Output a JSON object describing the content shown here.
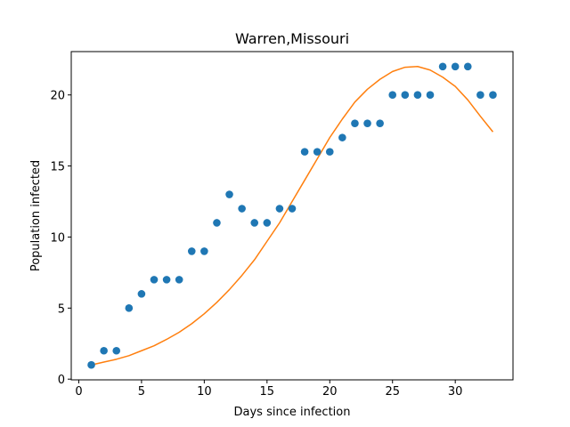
{
  "chart_data": {
    "type": "scatter",
    "title": "Warren,Missouri",
    "xlabel": "Days since infection",
    "ylabel": "Population infected",
    "xlim": [
      -0.6,
      34.6
    ],
    "ylim": [
      -0.05,
      23.05
    ],
    "xticks": [
      0,
      5,
      10,
      15,
      20,
      25,
      30
    ],
    "yticks": [
      0,
      5,
      10,
      15,
      20
    ],
    "grid": false,
    "legend": "none",
    "series": [
      {
        "kind": "scatter",
        "color": "#1f77b4",
        "x": [
          1,
          2,
          3,
          4,
          5,
          6,
          7,
          8,
          9,
          10,
          11,
          12,
          13,
          14,
          15,
          16,
          17,
          18,
          19,
          20,
          21,
          22,
          23,
          24,
          25,
          26,
          27,
          28,
          29,
          30,
          31,
          32,
          33
        ],
        "y": [
          1,
          2,
          2,
          5,
          6,
          7,
          7,
          7,
          9,
          9,
          11,
          13,
          12,
          11,
          11,
          12,
          12,
          16,
          16,
          16,
          17,
          18,
          18,
          18,
          20,
          20,
          20,
          20,
          22,
          22,
          22,
          20,
          20
        ]
      },
      {
        "kind": "line",
        "color": "#ff7f0e",
        "x": [
          1,
          2,
          3,
          4,
          5,
          6,
          7,
          8,
          9,
          10,
          11,
          12,
          13,
          14,
          15,
          16,
          17,
          18,
          19,
          20,
          21,
          22,
          23,
          24,
          25,
          26,
          27,
          28,
          29,
          30,
          31,
          32,
          33
        ],
        "y": [
          1.0,
          1.2,
          1.4,
          1.65,
          2.0,
          2.35,
          2.8,
          3.3,
          3.9,
          4.6,
          5.4,
          6.3,
          7.3,
          8.4,
          9.7,
          11.0,
          12.5,
          14.0,
          15.5,
          17.0,
          18.3,
          19.5,
          20.4,
          21.1,
          21.65,
          21.95,
          22.0,
          21.75,
          21.25,
          20.6,
          19.65,
          18.5,
          17.4
        ]
      }
    ]
  }
}
